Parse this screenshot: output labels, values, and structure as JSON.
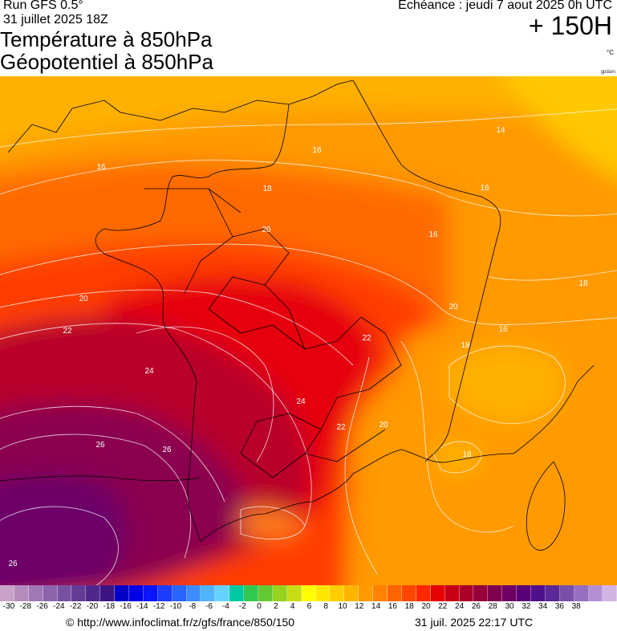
{
  "header": {
    "model_run": "Run GFS 0.5°",
    "run_date": "31 juillet 2025 18Z",
    "title_line1": "Température à 850hPa",
    "title_line2": "Géopotentiel à 850hPa",
    "valid_time": "Echéance : jeudi 7 aout 2025 0h UTC",
    "forecast_hours": "+ 150H",
    "unit": "°C",
    "credit_tag": "gpdam"
  },
  "map": {
    "region": "France",
    "contour_labels": [
      "14",
      "16",
      "16",
      "16",
      "16",
      "16",
      "18",
      "18",
      "18",
      "18",
      "20",
      "20",
      "20",
      "20",
      "22",
      "22",
      "22",
      "24",
      "24",
      "26",
      "26",
      "26"
    ]
  },
  "color_scale": {
    "tick_labels": [
      "-30",
      "-28",
      "-26",
      "-24",
      "-22",
      "-20",
      "-18",
      "-16",
      "-14",
      "-12",
      "-10",
      "-8",
      "-6",
      "-4",
      "-2",
      "0",
      "2",
      "4",
      "6",
      "8",
      "10",
      "12",
      "14",
      "16",
      "18",
      "20",
      "22",
      "24",
      "26",
      "28",
      "30",
      "32",
      "34",
      "36",
      "38"
    ],
    "colors": [
      "#c8a2c8",
      "#b48cbe",
      "#a078b4",
      "#8c64aa",
      "#7850a0",
      "#643c96",
      "#50288c",
      "#3c1482",
      "#0000c8",
      "#0000e6",
      "#0a14ff",
      "#1e3cff",
      "#2864ff",
      "#3c8cff",
      "#50b4ff",
      "#64d2ff",
      "#00c8a0",
      "#32c850",
      "#64c832",
      "#96d21e",
      "#c8dc14",
      "#ffff00",
      "#ffe600",
      "#ffcd00",
      "#ffb400",
      "#ff9b00",
      "#ff8200",
      "#ff6400",
      "#ff4600",
      "#ff2800",
      "#e60000",
      "#c80014",
      "#aa0028",
      "#96003c",
      "#820050",
      "#6e0064",
      "#5a0078",
      "#50108c",
      "#5a2896",
      "#7850aa",
      "#9670be",
      "#b490d2",
      "#d2b4e6"
    ]
  },
  "footer": {
    "url": "© http://www.infoclimat.fr/z/gfs/france/850/150",
    "generated": "31 juil. 2025 22:17 UTC"
  }
}
